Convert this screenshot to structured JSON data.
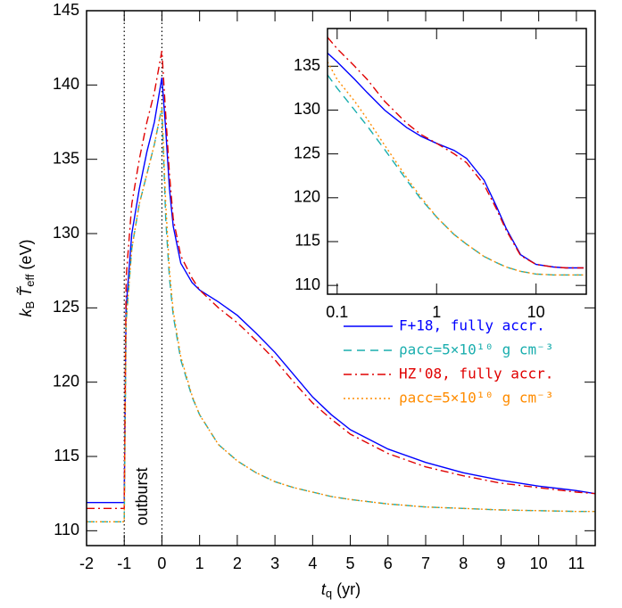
{
  "chart_data": [
    {
      "type": "line",
      "xlabel": [
        "t",
        "q",
        "(yr)"
      ],
      "ylabel": [
        "k",
        "B",
        "T̃",
        "eff",
        "(eV)"
      ],
      "annotation": "outburst",
      "vlines": [
        -1,
        0
      ],
      "xlim": [
        -2,
        11.5
      ],
      "ylim": [
        109,
        145
      ],
      "xticks": [
        -2,
        -1,
        0,
        1,
        2,
        3,
        4,
        5,
        6,
        7,
        8,
        9,
        10,
        11
      ],
      "yticks": [
        110,
        115,
        120,
        125,
        130,
        135,
        140,
        145
      ],
      "x": [
        -2,
        -1,
        -0.95,
        -0.8,
        -0.6,
        -0.4,
        -0.2,
        0,
        0.1,
        0.2,
        0.3,
        0.5,
        0.8,
        1,
        1.5,
        2,
        2.5,
        3,
        3.5,
        4,
        4.5,
        5,
        6,
        7,
        8,
        9,
        10,
        11,
        11.5
      ],
      "series": [
        {
          "name": "F+18, fully accr.",
          "color": "#0000ff",
          "linestyle": "solid",
          "values": [
            111.9,
            111.9,
            125,
            130,
            133,
            135.5,
            137.5,
            140.5,
            137,
            133,
            130.5,
            128,
            126.7,
            126.2,
            125.4,
            124.5,
            123.3,
            122,
            120.5,
            119,
            117.8,
            116.8,
            115.5,
            114.6,
            113.9,
            113.4,
            113,
            112.7,
            112.5
          ]
        },
        {
          "name": "ρacc=5×10¹⁰ g cm⁻³",
          "color": "#1aaeae",
          "linestyle": "dashed",
          "values": [
            110.6,
            110.6,
            124,
            129,
            132,
            134,
            136,
            138.5,
            131,
            127,
            124.5,
            121.5,
            119,
            117.8,
            115.8,
            114.7,
            113.9,
            113.3,
            112.9,
            112.6,
            112.3,
            112.1,
            111.8,
            111.6,
            111.5,
            111.4,
            111.35,
            111.3,
            111.3
          ]
        },
        {
          "name": "HZ'08, fully accr.",
          "color": "#e00000",
          "linestyle": "dashdot",
          "values": [
            111.5,
            111.5,
            127,
            132,
            135,
            137.5,
            139.5,
            142.3,
            138,
            134,
            131,
            128.5,
            127,
            126.2,
            125,
            124,
            122.8,
            121.5,
            120,
            118.6,
            117.5,
            116.5,
            115.2,
            114.3,
            113.7,
            113.2,
            112.9,
            112.6,
            112.5
          ]
        },
        {
          "name": "ρacc=5×10¹⁰ g cm⁻³",
          "color": "#ff8c00",
          "linestyle": "dotted",
          "values": [
            110.6,
            110.6,
            124,
            129,
            132,
            134,
            136,
            138.5,
            132,
            127.5,
            124.8,
            121.7,
            119.1,
            117.8,
            115.8,
            114.7,
            113.9,
            113.3,
            112.9,
            112.6,
            112.3,
            112.1,
            111.8,
            111.6,
            111.5,
            111.4,
            111.35,
            111.3,
            111.3
          ]
        }
      ]
    },
    {
      "type": "line",
      "xscale": "log",
      "xlim": [
        0.08,
        32
      ],
      "ylim": [
        109,
        139.3
      ],
      "xticks": [
        0.1,
        1,
        10
      ],
      "yticks": [
        110,
        115,
        120,
        125,
        130,
        135
      ],
      "x": [
        0.08,
        0.1,
        0.15,
        0.2,
        0.3,
        0.5,
        0.7,
        1,
        1.5,
        2,
        3,
        4,
        5,
        7,
        10,
        15,
        20,
        30
      ],
      "series": [
        {
          "color": "#0000ff",
          "linestyle": "solid",
          "values": [
            136.5,
            135.5,
            133.5,
            132,
            130,
            128,
            127,
            126.2,
            125.4,
            124.5,
            122,
            119,
            116.5,
            113.5,
            112.4,
            112.1,
            112,
            112
          ]
        },
        {
          "color": "#1aaeae",
          "linestyle": "dashed",
          "values": [
            134,
            132.5,
            130,
            128.2,
            125.5,
            122,
            119.8,
            117.8,
            115.8,
            114.7,
            113.3,
            112.6,
            112.1,
            111.6,
            111.3,
            111.2,
            111.2,
            111.2
          ]
        },
        {
          "color": "#e00000",
          "linestyle": "dashdot",
          "values": [
            138.3,
            137,
            135,
            133.5,
            131,
            128.5,
            127.2,
            126.2,
            125,
            124,
            121.5,
            118.7,
            116.3,
            113.4,
            112.4,
            112.1,
            112,
            112
          ]
        },
        {
          "color": "#ff8c00",
          "linestyle": "dotted",
          "values": [
            135.5,
            133.5,
            131,
            129,
            126,
            122.3,
            120,
            117.8,
            115.8,
            114.7,
            113.3,
            112.6,
            112.1,
            111.6,
            111.3,
            111.2,
            111.2,
            111.2
          ]
        }
      ]
    }
  ]
}
